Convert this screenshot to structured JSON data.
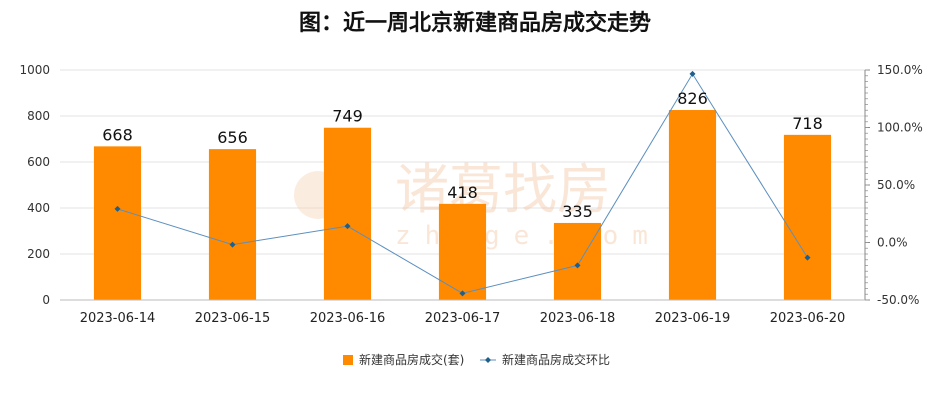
{
  "chart_data": {
    "type": "bar",
    "title": "图：近一周北京新建商品房成交走势",
    "categories": [
      "2023-06-14",
      "2023-06-15",
      "2023-06-16",
      "2023-06-17",
      "2023-06-18",
      "2023-06-19",
      "2023-06-20"
    ],
    "series": [
      {
        "name": "新建商品房成交(套)",
        "type": "bar",
        "axis": "left",
        "color": "#ff8a00",
        "values": [
          668,
          656,
          749,
          418,
          335,
          826,
          718
        ],
        "data_labels": [
          "668",
          "656",
          "749",
          "418",
          "335",
          "826",
          "718"
        ]
      },
      {
        "name": "新建商品房成交环比",
        "type": "line",
        "axis": "right",
        "color": "#5b8fc0",
        "marker_color": "#1f5f8b",
        "values": [
          29.2,
          -1.8,
          14.2,
          -44.2,
          -19.9,
          146.6,
          -13.1
        ]
      }
    ],
    "y_left": {
      "ylim": [
        0,
        1000
      ],
      "ticks": [
        "0",
        "200",
        "400",
        "600",
        "800",
        "1000"
      ]
    },
    "y_right": {
      "ylim": [
        -50,
        150
      ],
      "ticks": [
        "-50.0%",
        "0.0%",
        "50.0%",
        "100.0%",
        "150.0%"
      ]
    },
    "grid": true,
    "legend_position": "bottom"
  },
  "watermark": {
    "text": "诸葛找房",
    "sub": "zhuge.com"
  }
}
